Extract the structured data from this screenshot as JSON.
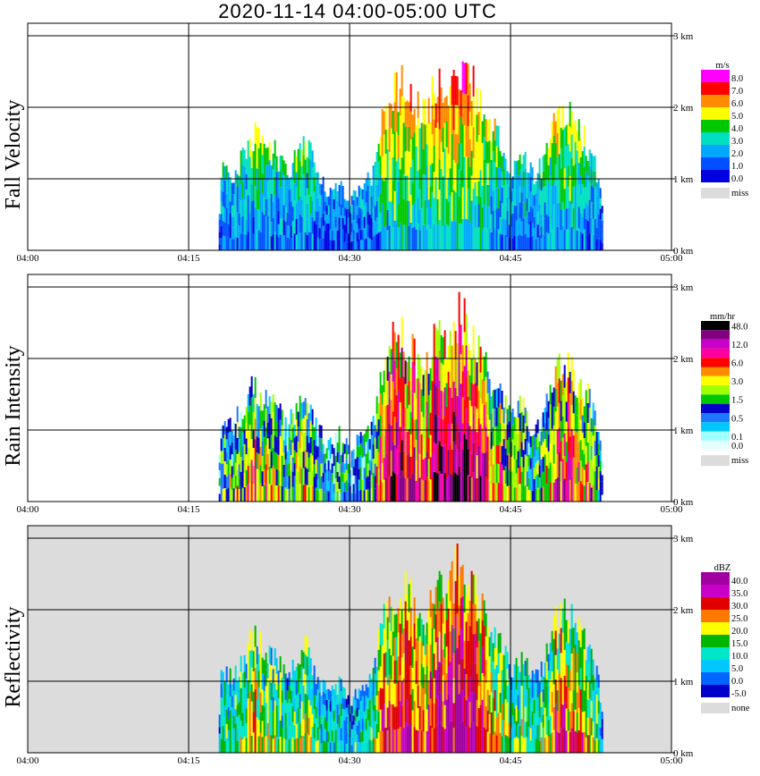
{
  "title": "2020-11-14   04:00-05:00 UTC",
  "chart_data": {
    "type": "heatmap",
    "x_ticks": [
      "04:00",
      "04:15",
      "04:30",
      "04:45",
      "05:00"
    ],
    "x_range_minutes": [
      0,
      60
    ],
    "y_ticks": [
      "0 km",
      "1 km",
      "2 km",
      "3 km"
    ],
    "y_range_km": [
      0,
      3.0
    ],
    "grid": true,
    "echo_top_profile": {
      "minutes": [
        17.8,
        18,
        19,
        20,
        21,
        22,
        23,
        24,
        25,
        26,
        27,
        28,
        29,
        30,
        31,
        32,
        33,
        34,
        35,
        36,
        37,
        38,
        39,
        40,
        41,
        42,
        43,
        44,
        45,
        46,
        47,
        48,
        49,
        50,
        51,
        52,
        53,
        54
      ],
      "top_km": [
        0.6,
        1.2,
        1.05,
        1.3,
        1.6,
        1.4,
        1.35,
        1.1,
        1.25,
        1.5,
        1.0,
        0.8,
        0.95,
        0.7,
        0.9,
        1.0,
        1.8,
        2.2,
        2.35,
        2.0,
        1.9,
        2.25,
        2.15,
        2.6,
        2.4,
        2.1,
        1.75,
        1.5,
        1.1,
        1.35,
        1.0,
        1.2,
        1.9,
        2.0,
        1.7,
        1.5,
        1.1,
        0.0
      ]
    },
    "panels": [
      {
        "ylabel": "Fall Velocity",
        "unit": "m/s",
        "background": "#ffffff",
        "legend": [
          {
            "label": "8.0",
            "color": "#ff00ff"
          },
          {
            "label": "7.0",
            "color": "#ff0000"
          },
          {
            "label": "6.0",
            "color": "#ff8c00"
          },
          {
            "label": "5.0",
            "color": "#ffff00"
          },
          {
            "label": "4.0",
            "color": "#00c800"
          },
          {
            "label": "3.0",
            "color": "#00e0c0"
          },
          {
            "label": "2.0",
            "color": "#00a8ff"
          },
          {
            "label": "1.0",
            "color": "#0050ff"
          },
          {
            "label": "0.0",
            "color": "#0000e0"
          },
          {
            "label": "miss",
            "color": "#dcdcdc"
          }
        ]
      },
      {
        "ylabel": "Rain Intensity",
        "unit": "mm/hr",
        "background": "#ffffff",
        "legend": [
          {
            "label": "48.0",
            "color": "#000000"
          },
          {
            "label": "",
            "color": "#800080"
          },
          {
            "label": "12.0",
            "color": "#c800c8"
          },
          {
            "label": "",
            "color": "#ff00a0"
          },
          {
            "label": "6.0",
            "color": "#ff0000"
          },
          {
            "label": "",
            "color": "#ff8c00"
          },
          {
            "label": "3.0",
            "color": "#ffff00"
          },
          {
            "label": "",
            "color": "#a0ff00"
          },
          {
            "label": "1.5",
            "color": "#00c800"
          },
          {
            "label": "",
            "color": "#0000c8"
          },
          {
            "label": "0.5",
            "color": "#1e78ff"
          },
          {
            "label": "",
            "color": "#00c8ff"
          },
          {
            "label": "0.1",
            "color": "#a0ffff"
          },
          {
            "label": "0.0",
            "color": "#e6ffff"
          },
          {
            "label": "miss",
            "color": "#dcdcdc"
          }
        ]
      },
      {
        "ylabel": "Reflectivity",
        "unit": "dBZ",
        "background": "#dcdcdc",
        "legend": [
          {
            "label": "40.0",
            "color": "#a000a0"
          },
          {
            "label": "35.0",
            "color": "#c800c8"
          },
          {
            "label": "30.0",
            "color": "#e00000"
          },
          {
            "label": "25.0",
            "color": "#ff7800"
          },
          {
            "label": "20.0",
            "color": "#ffff00"
          },
          {
            "label": "15.0",
            "color": "#00b400"
          },
          {
            "label": "10.0",
            "color": "#00e6c8"
          },
          {
            "label": "5.0",
            "color": "#00c8ff"
          },
          {
            "label": "0.0",
            "color": "#0064ff"
          },
          {
            "label": "-5.0",
            "color": "#0000c8"
          },
          {
            "label": "none",
            "color": "#dcdcdc"
          }
        ]
      }
    ]
  }
}
